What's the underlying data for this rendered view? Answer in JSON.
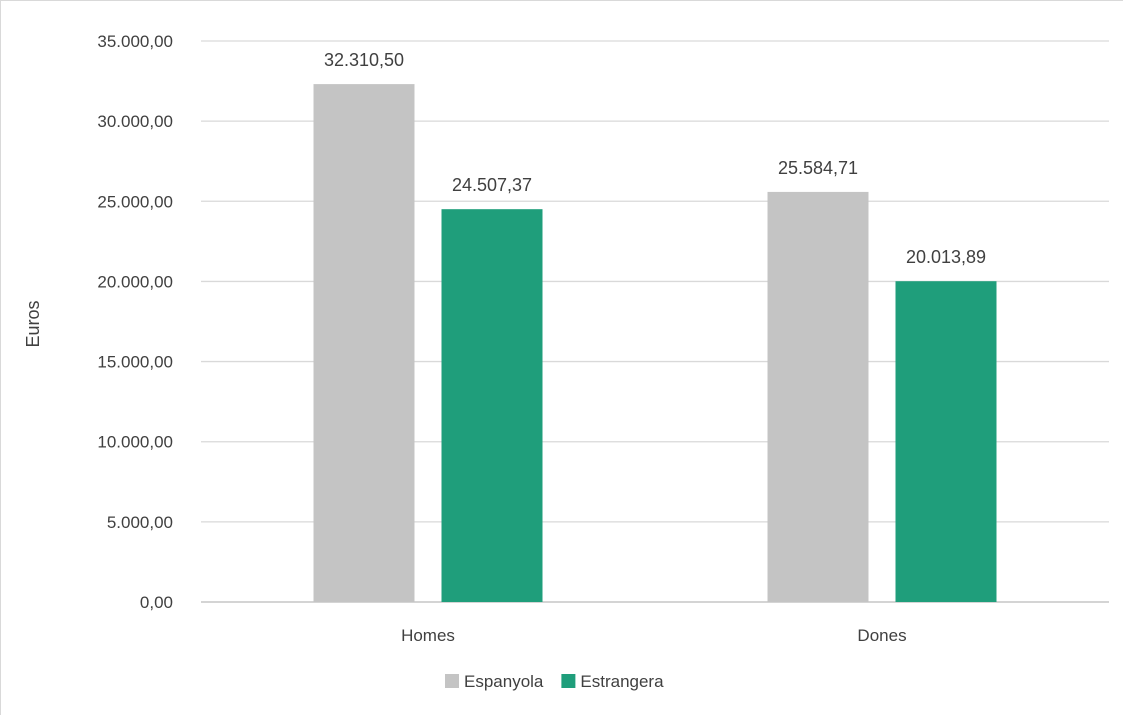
{
  "chart_data": {
    "type": "bar",
    "categories": [
      "Homes",
      "Dones"
    ],
    "series": [
      {
        "name": "Espanyola",
        "values": [
          32310.5,
          25584.71
        ],
        "labels": [
          "32.310,50",
          "25.584,71"
        ],
        "color": "#c4c4c4"
      },
      {
        "name": "Estrangera",
        "values": [
          24507.37,
          20013.89
        ],
        "labels": [
          "24.507,37",
          "20.013,89"
        ],
        "color": "#1f9e7b"
      }
    ],
    "ylabel": "Euros",
    "xlabel": "",
    "ylim": [
      0,
      35000
    ],
    "yticks": [
      0,
      5000,
      10000,
      15000,
      20000,
      25000,
      30000,
      35000
    ],
    "ytick_labels": [
      "0,00",
      "5.000,00",
      "10.000,00",
      "15.000,00",
      "20.000,00",
      "25.000,00",
      "30.000,00",
      "35.000,00"
    ],
    "grid": true,
    "legend_position": "bottom",
    "gridline_color": "#d9d9d9"
  }
}
